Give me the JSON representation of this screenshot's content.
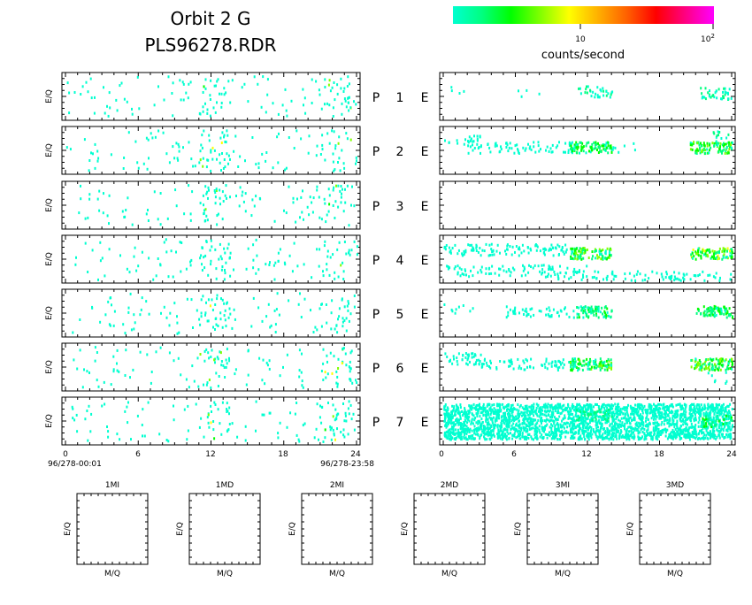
{
  "header": {
    "title_line1": "Orbit 2 G",
    "title_line2": "PLS96278.RDR"
  },
  "colorbar": {
    "tick_10": "10",
    "tick_100_base": "10",
    "tick_100_exp": "2",
    "label": "counts/second",
    "colors": [
      "#00ffd0",
      "#00ff80",
      "#00ff00",
      "#80ff00",
      "#ffff00",
      "#ffb000",
      "#ff6000",
      "#ff0000",
      "#ff0080",
      "#ff00ff"
    ]
  },
  "chart_data": {
    "type": "heatmap",
    "ylabel": "E/Q",
    "x_ticks": [
      "0",
      "6",
      "12",
      "18",
      "24"
    ],
    "x_range": [
      0,
      24
    ],
    "time_start": "96/278-00:01",
    "time_end": "96/278-23:58",
    "rows": [
      {
        "p_label": "P",
        "index": "1",
        "e_label": "E"
      },
      {
        "p_label": "P",
        "index": "2",
        "e_label": "E"
      },
      {
        "p_label": "P",
        "index": "3",
        "e_label": "E"
      },
      {
        "p_label": "P",
        "index": "4",
        "e_label": "E"
      },
      {
        "p_label": "P",
        "index": "5",
        "e_label": "E"
      },
      {
        "p_label": "P",
        "index": "6",
        "e_label": "E"
      },
      {
        "p_label": "P",
        "index": "7",
        "e_label": "E"
      }
    ],
    "mass_panels": [
      {
        "title": "1MI",
        "xlabel": "M/Q",
        "ylabel": "E/Q"
      },
      {
        "title": "1MD",
        "xlabel": "M/Q",
        "ylabel": "E/Q"
      },
      {
        "title": "2MI",
        "xlabel": "M/Q",
        "ylabel": "E/Q"
      },
      {
        "title": "2MD",
        "xlabel": "M/Q",
        "ylabel": "E/Q"
      },
      {
        "title": "3MI",
        "xlabel": "M/Q",
        "ylabel": "E/Q"
      },
      {
        "title": "3MD",
        "xlabel": "M/Q",
        "ylabel": "E/Q"
      }
    ]
  }
}
